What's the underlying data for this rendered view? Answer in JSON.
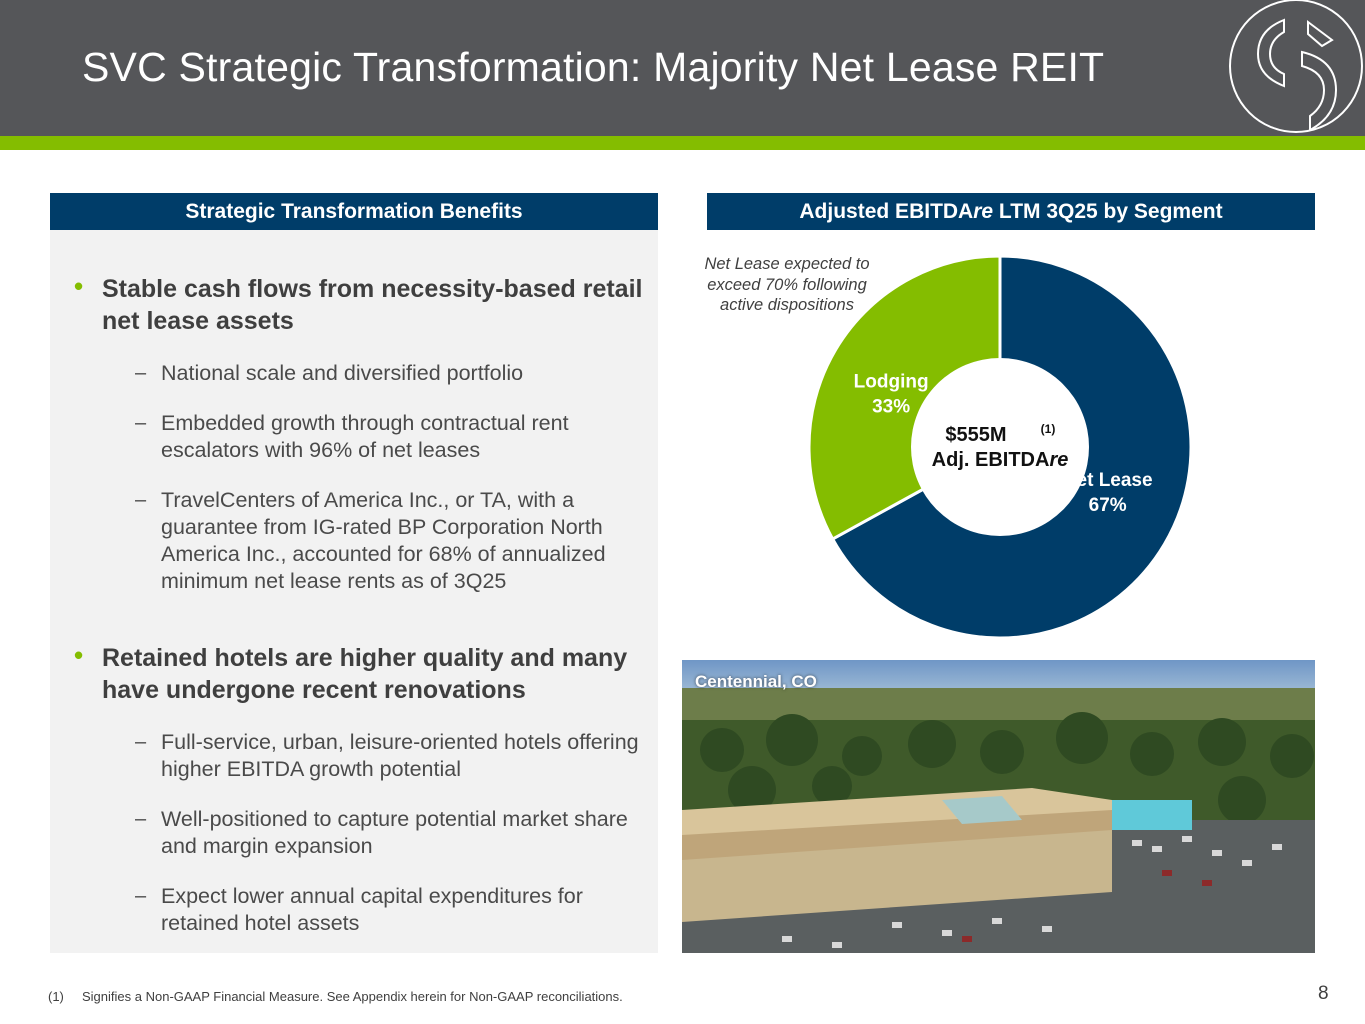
{
  "header": {
    "title": "SVC Strategic Transformation: Majority Net Lease REIT"
  },
  "left_panel": {
    "heading": "Strategic Transformation Benefits",
    "sections": [
      {
        "bullet": "Stable cash flows from necessity-based retail net lease assets",
        "subs": [
          "National scale and diversified portfolio",
          "Embedded growth through contractual rent escalators with 96% of net leases",
          "TravelCenters of America Inc., or TA, with a guarantee from IG-rated BP Corporation North America Inc., accounted for 68% of annualized minimum net lease rents as of 3Q25"
        ]
      },
      {
        "bullet": "Retained hotels are higher quality and many have undergone recent renovations",
        "subs": [
          "Full-service, urban, leisure-oriented hotels offering higher EBITDA growth potential",
          "Well-positioned to capture potential market share and margin expansion",
          "Expect lower annual capital expenditures for retained hotel assets"
        ]
      }
    ]
  },
  "right_panel": {
    "heading_pre": "Adjusted EBITDA",
    "heading_italic": "re",
    "heading_post": " LTM 3Q25 by Segment",
    "note": "Net Lease expected to exceed 70% following active dispositions",
    "photo_caption": "Centennial, CO"
  },
  "chart_data": {
    "type": "pie",
    "donut": true,
    "center_label": {
      "value": "$555M",
      "superscript": "(1)",
      "line2_pre": "Adj. EBITDA",
      "line2_italic": "re"
    },
    "slices": [
      {
        "label": "Net Lease",
        "pct_label": "67%",
        "value": 67,
        "color": "#003d69"
      },
      {
        "label": "Lodging",
        "pct_label": "33%",
        "value": 33,
        "color": "#84bd00"
      }
    ]
  },
  "footer": {
    "footnote_mark": "(1)",
    "footnote": "Signifies a Non-GAAP Financial Measure.  See Appendix herein for Non-GAAP reconciliations.",
    "page_number": "8"
  },
  "colors": {
    "header_bg": "#555659",
    "accent_green": "#84bd00",
    "navy": "#003d69",
    "panel_bg": "#f2f2f2"
  }
}
